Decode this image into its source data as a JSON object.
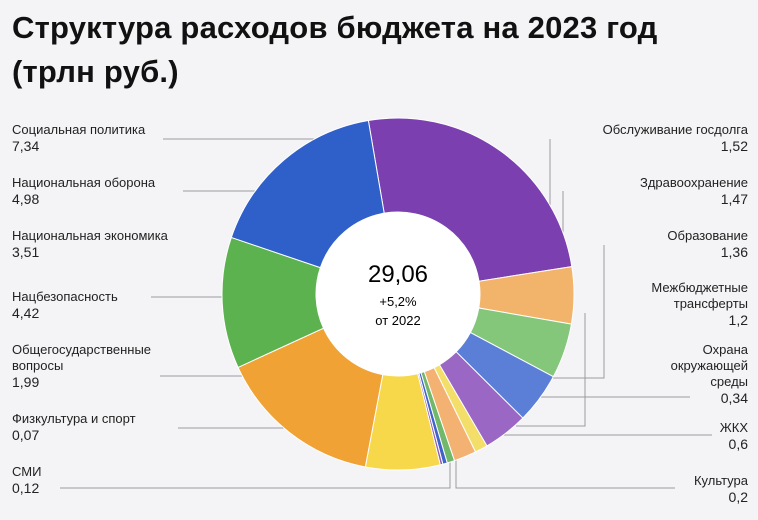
{
  "chart_data": {
    "type": "donut",
    "title": "Структура расходов бюджета на 2023 год (трлн руб.)",
    "title_lines": [
      "Структура расходов бюджета на 2023 год",
      "(трлн руб.)"
    ],
    "center": {
      "total": "29,06",
      "change": "+5,2%",
      "note": "от 2022"
    },
    "segments": [
      {
        "name": "Социальная политика",
        "value": 7.34,
        "display": "7,34",
        "color": "#7b3fb0"
      },
      {
        "name": "Обслуживание госдолга",
        "value": 1.52,
        "display": "1,52",
        "color": "#f2b46b"
      },
      {
        "name": "Здравоохранение",
        "value": 1.47,
        "display": "1,47",
        "color": "#84c77b"
      },
      {
        "name": "Образование",
        "value": 1.36,
        "display": "1,36",
        "color": "#5b7fd6"
      },
      {
        "name": "Межбюджетные трансферты",
        "value": 1.2,
        "display": "1,2",
        "color": "#9b67c4"
      },
      {
        "name": "Охрана окружающей среды",
        "value": 0.34,
        "display": "0,34",
        "color": "#f4de6a"
      },
      {
        "name": "ЖКХ",
        "value": 0.6,
        "display": "0,6",
        "color": "#f3b271"
      },
      {
        "name": "Культура",
        "value": 0.2,
        "display": "0,2",
        "color": "#72b86a"
      },
      {
        "name": "СМИ",
        "value": 0.12,
        "display": "0,12",
        "color": "#3f63c9"
      },
      {
        "name": "Физкультура и спорт",
        "value": 0.07,
        "display": "0,07",
        "color": "#8e5bbf"
      },
      {
        "name": "Общегосударственные вопросы",
        "value": 1.99,
        "display": "1,99",
        "color": "#f7d84a"
      },
      {
        "name": "Нацбезопасность",
        "value": 4.42,
        "display": "4,42",
        "color": "#f0a234"
      },
      {
        "name": "Национальная экономика",
        "value": 3.51,
        "display": "3,51",
        "color": "#5cb24f"
      },
      {
        "name": "Национальная оборона",
        "value": 4.98,
        "display": "4,98",
        "color": "#2f5fc8"
      }
    ],
    "labels": {
      "social": {
        "name": "Социальная политика",
        "value": "7,34"
      },
      "defense": {
        "name": "Национальная оборона",
        "value": "4,98"
      },
      "economy": {
        "name": "Национальная экономика",
        "value": "3,51"
      },
      "security": {
        "name": "Нацбезопасность",
        "value": "4,42"
      },
      "general_1": "Общегосударственные",
      "general_2": "вопросы",
      "general_value": "1,99",
      "sport": {
        "name": "Физкультура и спорт",
        "value": "0,07"
      },
      "media": {
        "name": "СМИ",
        "value": "0,12"
      },
      "debt": {
        "name": "Обслуживание госдолга",
        "value": "1,52"
      },
      "health": {
        "name": "Здравоохранение",
        "value": "1,47"
      },
      "education": {
        "name": "Образование",
        "value": "1,36"
      },
      "transfers_1": "Межбюджетные",
      "transfers_2": "трансферты",
      "transfers_value": "1,2",
      "env_1": "Охрана",
      "env_2": "окружающей",
      "env_3": "среды",
      "env_value": "0,34",
      "housing": {
        "name": "ЖКХ",
        "value": "0,6"
      },
      "culture": {
        "name": "Культура",
        "value": "0,2"
      }
    }
  }
}
